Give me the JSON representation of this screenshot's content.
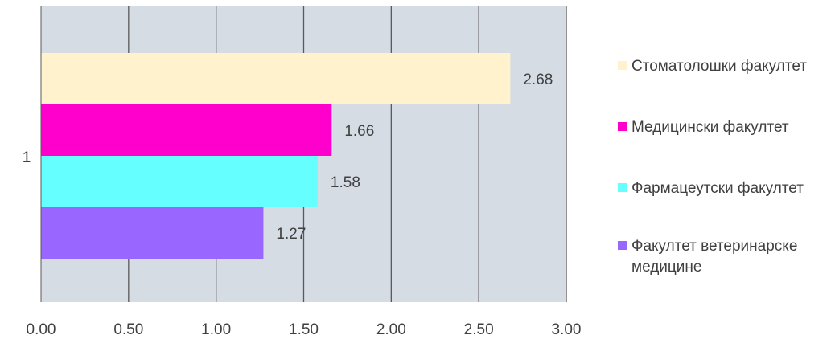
{
  "chart_data": {
    "type": "bar",
    "orientation": "horizontal",
    "categories": [
      "1"
    ],
    "series": [
      {
        "name": "Стоматолошки факултет",
        "values": [
          2.68
        ],
        "label": "2.68",
        "color": "#FFF2CC"
      },
      {
        "name": "Медицински факултет",
        "values": [
          1.66
        ],
        "label": "1.66",
        "color": "#FF00CC"
      },
      {
        "name": "Фармацеутски факултет",
        "values": [
          1.58
        ],
        "label": "1.58",
        "color": "#66FFFF"
      },
      {
        "name": "Факултет ветеринарске медицине",
        "values": [
          1.27
        ],
        "label": "1.27",
        "color": "#9966FF"
      }
    ],
    "xlim": [
      0,
      3
    ],
    "xticks": [
      "0.00",
      "0.50",
      "1.00",
      "1.50",
      "2.00",
      "2.50",
      "3.00"
    ],
    "grid": true,
    "legend_position": "right",
    "plot_background": "#D6DCE4",
    "gridline_color": "#595959"
  }
}
